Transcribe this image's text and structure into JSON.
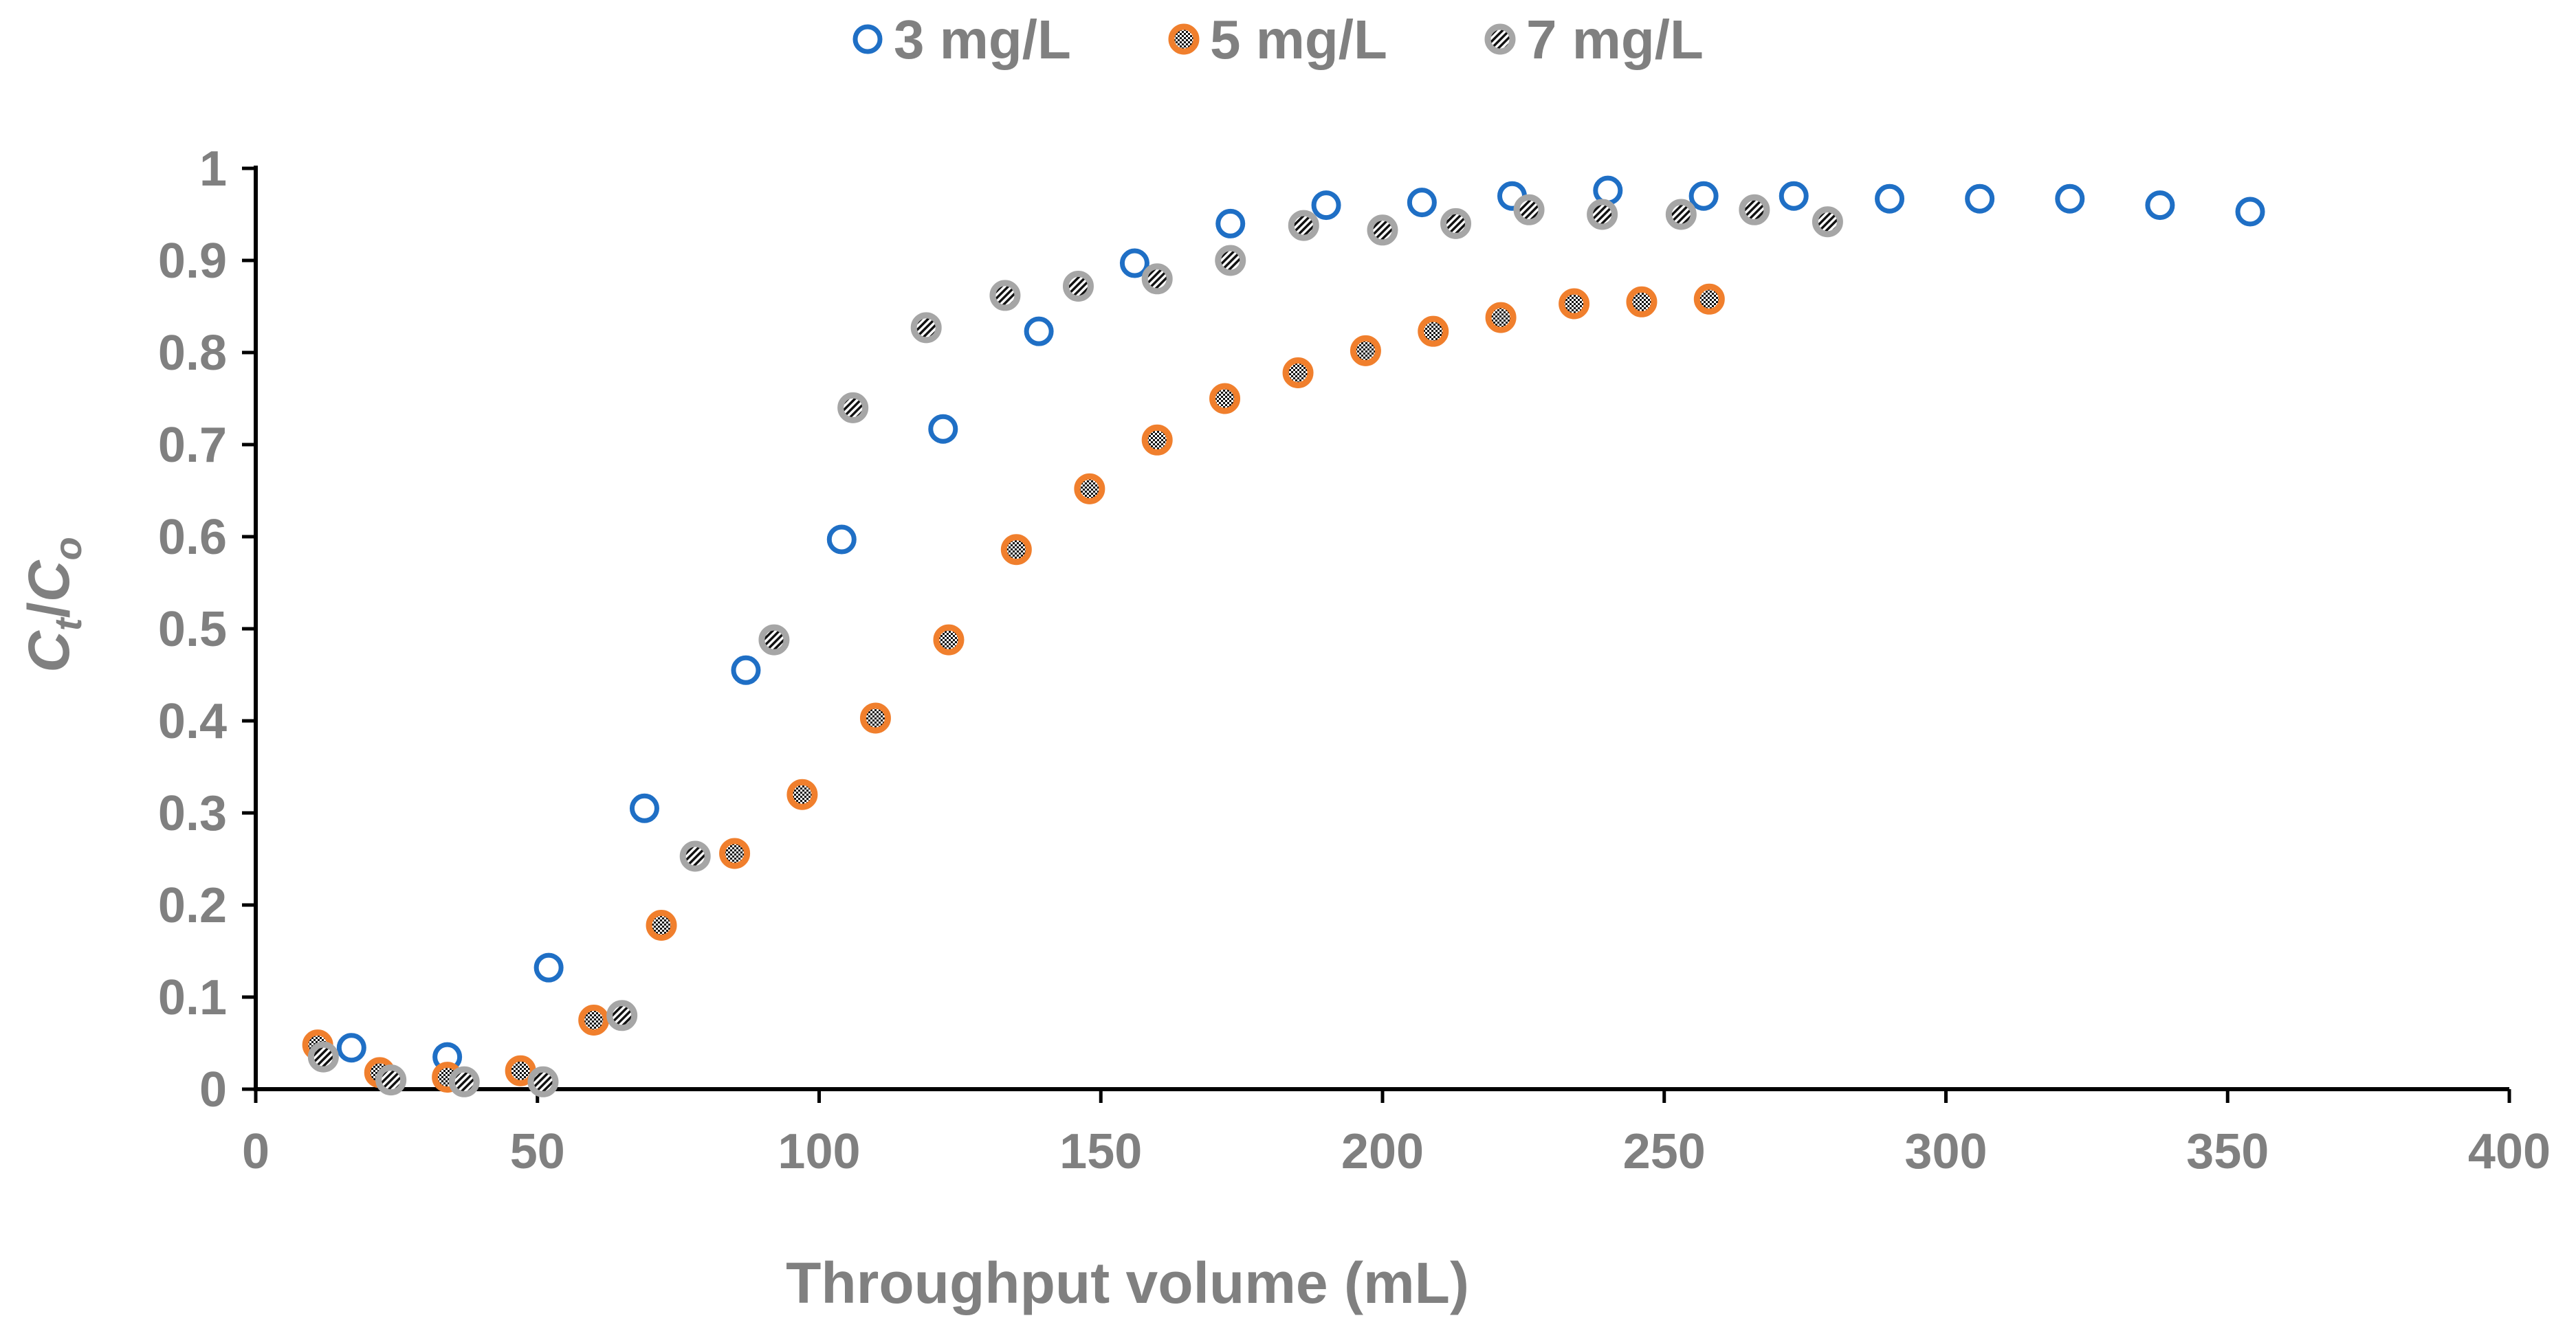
{
  "chart_data": {
    "type": "scatter",
    "title": "",
    "xlabel": "Throughput volume (mL)",
    "ylabel": {
      "main": "C",
      "sub1": "t",
      "slash": "/",
      "main2": "C",
      "sub2": "o"
    },
    "xlim": [
      0,
      400
    ],
    "ylim": [
      0,
      1
    ],
    "x_ticks": [
      "0",
      "50",
      "100",
      "150",
      "200",
      "250",
      "300",
      "350",
      "400"
    ],
    "y_ticks": [
      "0",
      "0.1",
      "0.2",
      "0.3",
      "0.4",
      "0.5",
      "0.6",
      "0.7",
      "0.8",
      "0.9",
      "1"
    ],
    "grid": false,
    "legend_position": "top",
    "series": [
      {
        "name": "3 mg/L",
        "color": "#1F6FC5",
        "marker": "open-circle",
        "points": [
          [
            17,
            0.045
          ],
          [
            34,
            0.035
          ],
          [
            52,
            0.132
          ],
          [
            69,
            0.305
          ],
          [
            87,
            0.455
          ],
          [
            104,
            0.597
          ],
          [
            122,
            0.717
          ],
          [
            139,
            0.823
          ],
          [
            156,
            0.897
          ],
          [
            173,
            0.94
          ],
          [
            190,
            0.96
          ],
          [
            207,
            0.963
          ],
          [
            223,
            0.97
          ],
          [
            240,
            0.976
          ],
          [
            257,
            0.97
          ],
          [
            273,
            0.97
          ],
          [
            290,
            0.967
          ],
          [
            306,
            0.967
          ],
          [
            322,
            0.967
          ],
          [
            338,
            0.96
          ],
          [
            354,
            0.953
          ]
        ]
      },
      {
        "name": "5 mg/L",
        "color": "#F07F2D",
        "marker": "filled-circle",
        "points": [
          [
            11,
            0.048
          ],
          [
            22,
            0.018
          ],
          [
            34,
            0.013
          ],
          [
            47,
            0.02
          ],
          [
            60,
            0.075
          ],
          [
            72,
            0.178
          ],
          [
            85,
            0.256
          ],
          [
            97,
            0.32
          ],
          [
            110,
            0.403
          ],
          [
            123,
            0.488
          ],
          [
            135,
            0.586
          ],
          [
            148,
            0.652
          ],
          [
            160,
            0.705
          ],
          [
            172,
            0.75
          ],
          [
            185,
            0.778
          ],
          [
            197,
            0.802
          ],
          [
            209,
            0.823
          ],
          [
            221,
            0.838
          ],
          [
            234,
            0.853
          ],
          [
            246,
            0.855
          ],
          [
            258,
            0.858
          ]
        ]
      },
      {
        "name": "7 mg/L",
        "color": "#A6A6A6",
        "marker": "striped-circle",
        "points": [
          [
            12,
            0.035
          ],
          [
            24,
            0.01
          ],
          [
            37,
            0.008
          ],
          [
            51,
            0.008
          ],
          [
            65,
            0.08
          ],
          [
            78,
            0.253
          ],
          [
            92,
            0.488
          ],
          [
            106,
            0.74
          ],
          [
            119,
            0.827
          ],
          [
            133,
            0.862
          ],
          [
            146,
            0.872
          ],
          [
            160,
            0.88
          ],
          [
            173,
            0.9
          ],
          [
            186,
            0.938
          ],
          [
            200,
            0.933
          ],
          [
            213,
            0.94
          ],
          [
            226,
            0.955
          ],
          [
            239,
            0.95
          ],
          [
            253,
            0.95
          ],
          [
            266,
            0.955
          ],
          [
            279,
            0.942
          ]
        ]
      }
    ]
  }
}
